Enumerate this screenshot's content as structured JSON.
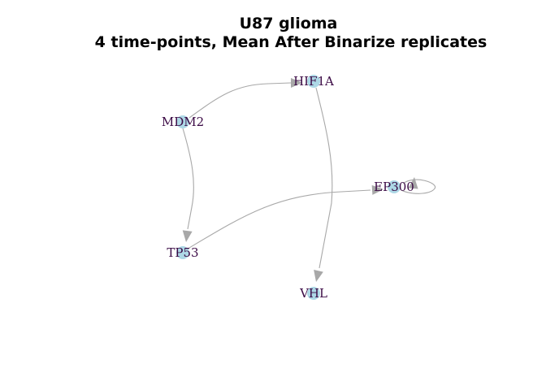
{
  "title_line1": "U87 glioma",
  "title_line2": "4 time-points, Mean After Binarize replicates",
  "colors": {
    "node_fill": "#add8e6",
    "label": "#3b0a45",
    "edge": "#a8a8a8"
  },
  "nodes": [
    {
      "id": "HIF1A",
      "label": "HIF1A"
    },
    {
      "id": "MDM2",
      "label": "MDM2"
    },
    {
      "id": "EP300",
      "label": "EP300"
    },
    {
      "id": "TP53",
      "label": "TP53"
    },
    {
      "id": "VHL",
      "label": "VHL"
    }
  ],
  "edges": [
    {
      "from": "MDM2",
      "to": "HIF1A"
    },
    {
      "from": "MDM2",
      "to": "TP53"
    },
    {
      "from": "HIF1A",
      "to": "VHL"
    },
    {
      "from": "TP53",
      "to": "EP300"
    },
    {
      "from": "EP300",
      "to": "EP300"
    }
  ]
}
